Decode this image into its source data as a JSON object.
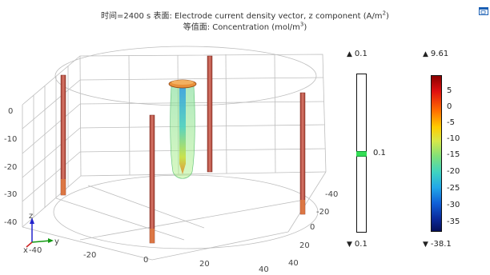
{
  "title": {
    "line1_pre": "时间=2400 s   表面: Electrode current density vector, z component (A/m",
    "line1_sup": "2",
    "line1_post": ")",
    "line2_pre": "等值面: Concentration (mol/m",
    "line2_sup": "3",
    "line2_post": ")"
  },
  "corner_icon": "window-restore-icon",
  "axes": {
    "z_ticks": [
      "0",
      "-10",
      "-20",
      "-30",
      "-40"
    ],
    "y_ticks": [
      "-40",
      "-20",
      "0",
      "20",
      "40"
    ],
    "x_ticks": [
      "-40",
      "-20",
      "0",
      "20",
      "40"
    ],
    "triad_labels": {
      "z": "z",
      "y": "y",
      "x": "x"
    }
  },
  "concentration_legend": {
    "max_label": "0.1",
    "min_label": "0.1",
    "mid_label": "0.1",
    "max_symbol": "▲",
    "min_symbol": "▼"
  },
  "current_density_legend": {
    "max_label": "9.61",
    "min_label": "-38.1",
    "max_symbol": "▲",
    "min_symbol": "▼",
    "ticks": [
      "5",
      "0",
      "-5",
      "-10",
      "-15",
      "-20",
      "-25",
      "-30",
      "-35"
    ],
    "range": [
      -38.1,
      9.61
    ]
  },
  "colors": {
    "axis_triad_z": "#2222cc",
    "axis_triad_y": "#119911",
    "axis_triad_x": "#cc2222",
    "electrode": "#c25a4a",
    "isosurface": "#7fe07a"
  }
}
